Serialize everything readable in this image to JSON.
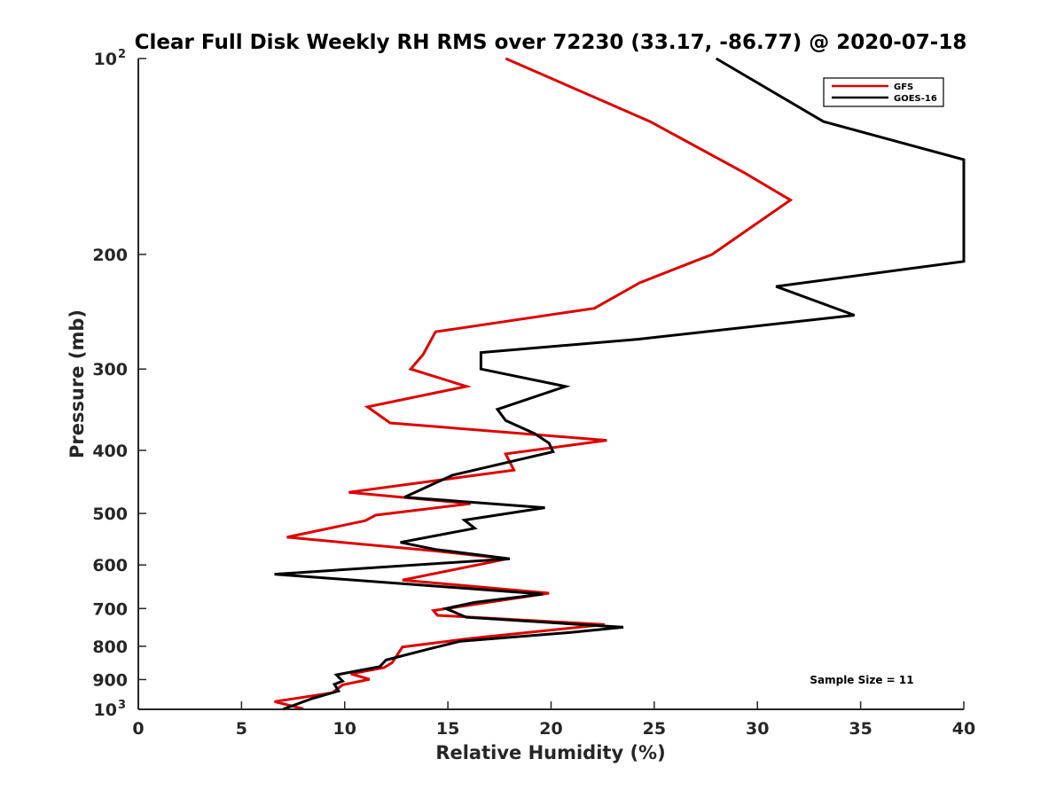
{
  "chart_data": {
    "type": "line",
    "title": "Clear Full Disk Weekly RH RMS over 72230 (33.17, -86.77) @ 2020-07-18",
    "xlabel": "Relative Humidity (%)",
    "ylabel": "Pressure (mb)",
    "xlim": [
      0,
      40
    ],
    "ylim": [
      100,
      1000
    ],
    "yscale": "log",
    "y_reversed": true,
    "grid": false,
    "x_ticks": [
      0,
      5,
      10,
      15,
      20,
      25,
      30,
      35,
      40
    ],
    "y_ticks": [
      {
        "value": 100,
        "label": "10",
        "sup": "2"
      },
      {
        "value": 200,
        "label": "200",
        "sup": ""
      },
      {
        "value": 300,
        "label": "300",
        "sup": ""
      },
      {
        "value": 400,
        "label": "400",
        "sup": ""
      },
      {
        "value": 500,
        "label": "500",
        "sup": ""
      },
      {
        "value": 600,
        "label": "600",
        "sup": ""
      },
      {
        "value": 700,
        "label": "700",
        "sup": ""
      },
      {
        "value": 800,
        "label": "800",
        "sup": ""
      },
      {
        "value": 900,
        "label": "900",
        "sup": ""
      },
      {
        "value": 1000,
        "label": "10",
        "sup": "3"
      }
    ],
    "legend": {
      "position": "top-right"
    },
    "series": [
      {
        "name": "GFS",
        "color": "#dd0000",
        "points": [
          [
            17.8,
            100
          ],
          [
            24.8,
            125
          ],
          [
            29.4,
            150
          ],
          [
            31.6,
            165
          ],
          [
            27.8,
            200
          ],
          [
            24.3,
            221
          ],
          [
            22.1,
            242
          ],
          [
            14.4,
            263
          ],
          [
            13.8,
            285
          ],
          [
            13.2,
            300
          ],
          [
            15.9,
            319
          ],
          [
            11.1,
            343
          ],
          [
            12.2,
            363
          ],
          [
            22.7,
            386
          ],
          [
            17.8,
            405
          ],
          [
            18.2,
            429
          ],
          [
            10.2,
            464
          ],
          [
            16.1,
            483
          ],
          [
            11.5,
            503
          ],
          [
            11.0,
            513
          ],
          [
            7.2,
            544
          ],
          [
            14.4,
            571
          ],
          [
            17.9,
            587
          ],
          [
            12.8,
            633
          ],
          [
            19.9,
            663
          ],
          [
            14.3,
            705
          ],
          [
            14.5,
            717
          ],
          [
            22.6,
            741
          ],
          [
            16.1,
            778
          ],
          [
            12.8,
            802
          ],
          [
            12.3,
            848
          ],
          [
            11.9,
            863
          ],
          [
            10.3,
            882
          ],
          [
            11.2,
            899
          ],
          [
            9.9,
            917
          ],
          [
            9.4,
            943
          ],
          [
            6.6,
            973
          ],
          [
            8.0,
            998
          ]
        ]
      },
      {
        "name": "GOES-16",
        "color": "#000000",
        "points": [
          [
            28.0,
            100
          ],
          [
            33.2,
            125
          ],
          [
            40.0,
            143
          ],
          [
            40.0,
            205
          ],
          [
            30.9,
            224
          ],
          [
            34.7,
            248
          ],
          [
            24.2,
            270
          ],
          [
            16.6,
            283
          ],
          [
            16.6,
            300
          ],
          [
            20.7,
            319
          ],
          [
            17.4,
            346
          ],
          [
            17.8,
            360
          ],
          [
            19.2,
            377
          ],
          [
            19.9,
            390
          ],
          [
            20.1,
            402
          ],
          [
            15.2,
            437
          ],
          [
            12.9,
            472
          ],
          [
            19.7,
            490
          ],
          [
            15.8,
            512
          ],
          [
            16.3,
            527
          ],
          [
            12.7,
            554
          ],
          [
            14.4,
            568
          ],
          [
            18.0,
            587
          ],
          [
            6.6,
            620
          ],
          [
            19.6,
            665
          ],
          [
            16.3,
            685
          ],
          [
            14.9,
            700
          ],
          [
            15.9,
            722
          ],
          [
            23.5,
            748
          ],
          [
            20.9,
            762
          ],
          [
            15.6,
            786
          ],
          [
            14.0,
            809
          ],
          [
            12.0,
            840
          ],
          [
            11.7,
            860
          ],
          [
            9.6,
            885
          ],
          [
            9.9,
            905
          ],
          [
            9.5,
            915
          ],
          [
            9.7,
            937
          ],
          [
            8.4,
            963
          ],
          [
            7.0,
            1000
          ]
        ]
      }
    ],
    "annotation": "Sample Size = 11"
  }
}
